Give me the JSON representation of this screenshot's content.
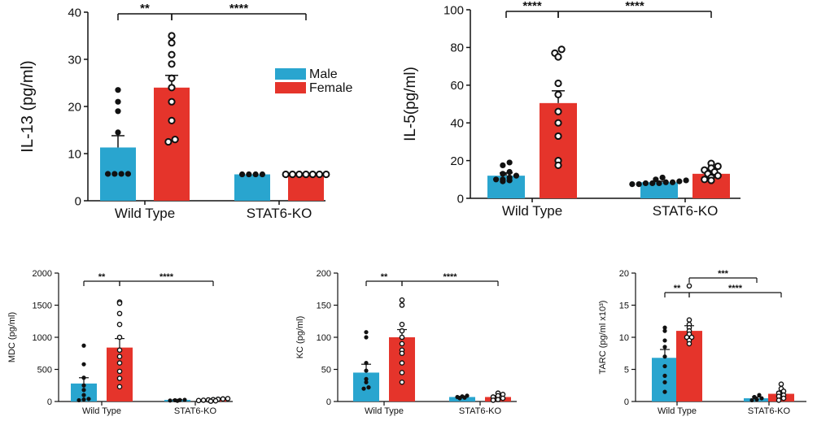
{
  "colors": {
    "male": "#29a5cf",
    "female": "#e5342b",
    "axis": "#111111"
  },
  "legend": {
    "male_label": "Male",
    "female_label": "Female"
  },
  "chart_data": [
    {
      "id": "il13",
      "type": "bar",
      "ylabel": "IL-13 (pg/ml)",
      "ylim": [
        0,
        40
      ],
      "yticks": [
        0,
        10,
        20,
        30,
        40
      ],
      "categories": [
        "Wild Type",
        "STAT6-KO"
      ],
      "series": [
        {
          "name": "Male",
          "values": [
            11.3,
            5.6
          ],
          "errors": [
            2.5,
            0
          ]
        },
        {
          "name": "Female",
          "values": [
            24.0,
            5.6
          ],
          "errors": [
            2.6,
            0
          ]
        }
      ],
      "points": {
        "Male": [
          [
            5.7,
            5.7,
            5.7,
            5.7,
            14.5,
            19.0,
            21.0,
            23.5
          ],
          [
            5.6,
            5.6,
            5.6,
            5.6
          ]
        ],
        "Female": [
          [
            12.5,
            13.0,
            17.0,
            21.0,
            24.0,
            26.0,
            29.0,
            31.0,
            33.5,
            35.0
          ],
          [
            5.6,
            5.6,
            5.6,
            5.6,
            5.6,
            5.6,
            5.6
          ]
        ]
      },
      "annotations": [
        {
          "label": "**",
          "from": "Wild Type|Male",
          "to": "Wild Type|Female",
          "level": 0
        },
        {
          "label": "****",
          "from": "Wild Type|Female",
          "to": "STAT6-KO|Female",
          "level": 0
        }
      ]
    },
    {
      "id": "il5",
      "type": "bar",
      "ylabel": "IL-5(pg/ml)",
      "ylim": [
        0,
        100
      ],
      "yticks": [
        0,
        20,
        40,
        60,
        80,
        100
      ],
      "categories": [
        "Wild Type",
        "STAT6-KO"
      ],
      "series": [
        {
          "name": "Male",
          "values": [
            12.0,
            8.5
          ],
          "errors": [
            1.5,
            0.5
          ]
        },
        {
          "name": "Female",
          "values": [
            50.5,
            13.0
          ],
          "errors": [
            6.5,
            1.0
          ]
        }
      ],
      "points": {
        "Male": [
          [
            9.0,
            9.5,
            10.0,
            10.0,
            11.0,
            12.0,
            13.0,
            14.0,
            17.5,
            19.0
          ],
          [
            7.5,
            7.5,
            8.0,
            8.0,
            8.0,
            8.5,
            8.5,
            9.0,
            9.5,
            10.0,
            11.0
          ]
        ],
        "Female": [
          [
            17.5,
            20.0,
            33.0,
            40.0,
            46.0,
            55.0,
            61.0,
            75.0,
            77.0,
            79.0
          ],
          [
            9.5,
            10.0,
            11.0,
            12.0,
            13.0,
            14.0,
            15.0,
            16.0,
            17.0,
            18.5
          ]
        ]
      },
      "annotations": [
        {
          "label": "****",
          "from": "Wild Type|Male",
          "to": "Wild Type|Female",
          "level": 0
        },
        {
          "label": "****",
          "from": "Wild Type|Female",
          "to": "STAT6-KO|Female",
          "level": 0
        }
      ]
    },
    {
      "id": "mdc",
      "type": "bar",
      "ylabel": "MDC (pg/ml)",
      "ylim": [
        0,
        2000
      ],
      "yticks": [
        0,
        500,
        1000,
        1500,
        2000
      ],
      "categories": [
        "Wild Type",
        "STAT6-KO"
      ],
      "series": [
        {
          "name": "Male",
          "values": [
            280,
            25
          ],
          "errors": [
            90,
            4
          ]
        },
        {
          "name": "Female",
          "values": [
            840,
            25
          ],
          "errors": [
            140,
            6
          ]
        }
      ],
      "points": {
        "Male": [
          [
            20,
            30,
            40,
            100,
            180,
            250,
            370,
            580,
            870
          ],
          [
            10,
            15,
            20,
            22,
            25
          ]
        ],
        "Female": [
          [
            230,
            360,
            470,
            600,
            700,
            800,
            1000,
            1200,
            1370,
            1530,
            1550
          ],
          [
            5,
            10,
            15,
            20,
            25,
            30,
            35,
            40,
            45
          ]
        ]
      },
      "annotations": [
        {
          "label": "**",
          "from": "Wild Type|Male",
          "to": "Wild Type|Female",
          "level": 0
        },
        {
          "label": "****",
          "from": "Wild Type|Female",
          "to": "STAT6-KO|Female",
          "level": 0
        }
      ]
    },
    {
      "id": "kc",
      "type": "bar",
      "ylabel": "KC (pg/ml)",
      "ylim": [
        0,
        200
      ],
      "yticks": [
        0,
        50,
        100,
        150,
        200
      ],
      "categories": [
        "Wild Type",
        "STAT6-KO"
      ],
      "series": [
        {
          "name": "Male",
          "values": [
            45,
            7
          ],
          "errors": [
            13,
            1
          ]
        },
        {
          "name": "Female",
          "values": [
            100,
            7
          ],
          "errors": [
            12,
            2
          ]
        }
      ],
      "points": {
        "Male": [
          [
            20,
            22,
            30,
            35,
            48,
            60,
            100,
            108
          ],
          [
            5,
            6,
            7,
            8,
            9
          ]
        ],
        "Female": [
          [
            30,
            45,
            60,
            75,
            80,
            90,
            100,
            110,
            120,
            150,
            158
          ],
          [
            2,
            3,
            5,
            7,
            9,
            11,
            13
          ]
        ]
      },
      "annotations": [
        {
          "label": "**",
          "from": "Wild Type|Male",
          "to": "Wild Type|Female",
          "level": 0
        },
        {
          "label": "****",
          "from": "Wild Type|Female",
          "to": "STAT6-KO|Female",
          "level": 0
        }
      ]
    },
    {
      "id": "tarc",
      "type": "bar",
      "ylabel": "TARC (pg/ml x10³)",
      "ylim": [
        0,
        20
      ],
      "yticks": [
        0,
        5,
        10,
        15,
        20
      ],
      "categories": [
        "Wild Type",
        "STAT6-KO"
      ],
      "series": [
        {
          "name": "Male",
          "values": [
            6.8,
            0.5
          ],
          "errors": [
            1.3,
            0.2
          ]
        },
        {
          "name": "Female",
          "values": [
            11.0,
            1.2
          ],
          "errors": [
            0.8,
            0.3
          ]
        }
      ],
      "points": {
        "Male": [
          [
            1.5,
            3.0,
            4.0,
            5.5,
            7.0,
            8.5,
            9.5,
            11.0,
            11.5
          ],
          [
            0.2,
            0.3,
            0.5,
            0.7,
            1.0
          ]
        ],
        "Female": [
          [
            9.0,
            9.5,
            10.0,
            10.0,
            10.5,
            11.0,
            11.5,
            12.0,
            12.7,
            18.0
          ],
          [
            0.2,
            0.5,
            0.8,
            1.0,
            1.3,
            1.6,
            2.0,
            2.7
          ]
        ]
      },
      "annotations": [
        {
          "label": "**",
          "from": "Wild Type|Male",
          "to": "Wild Type|Female",
          "level": 1
        },
        {
          "label": "****",
          "from": "Wild Type|Female",
          "to": "STAT6-KO|Female",
          "level": 1
        },
        {
          "label": "***",
          "from": "Wild Type|Female",
          "to": "STAT6-KO|Male",
          "level": 0
        }
      ]
    }
  ]
}
